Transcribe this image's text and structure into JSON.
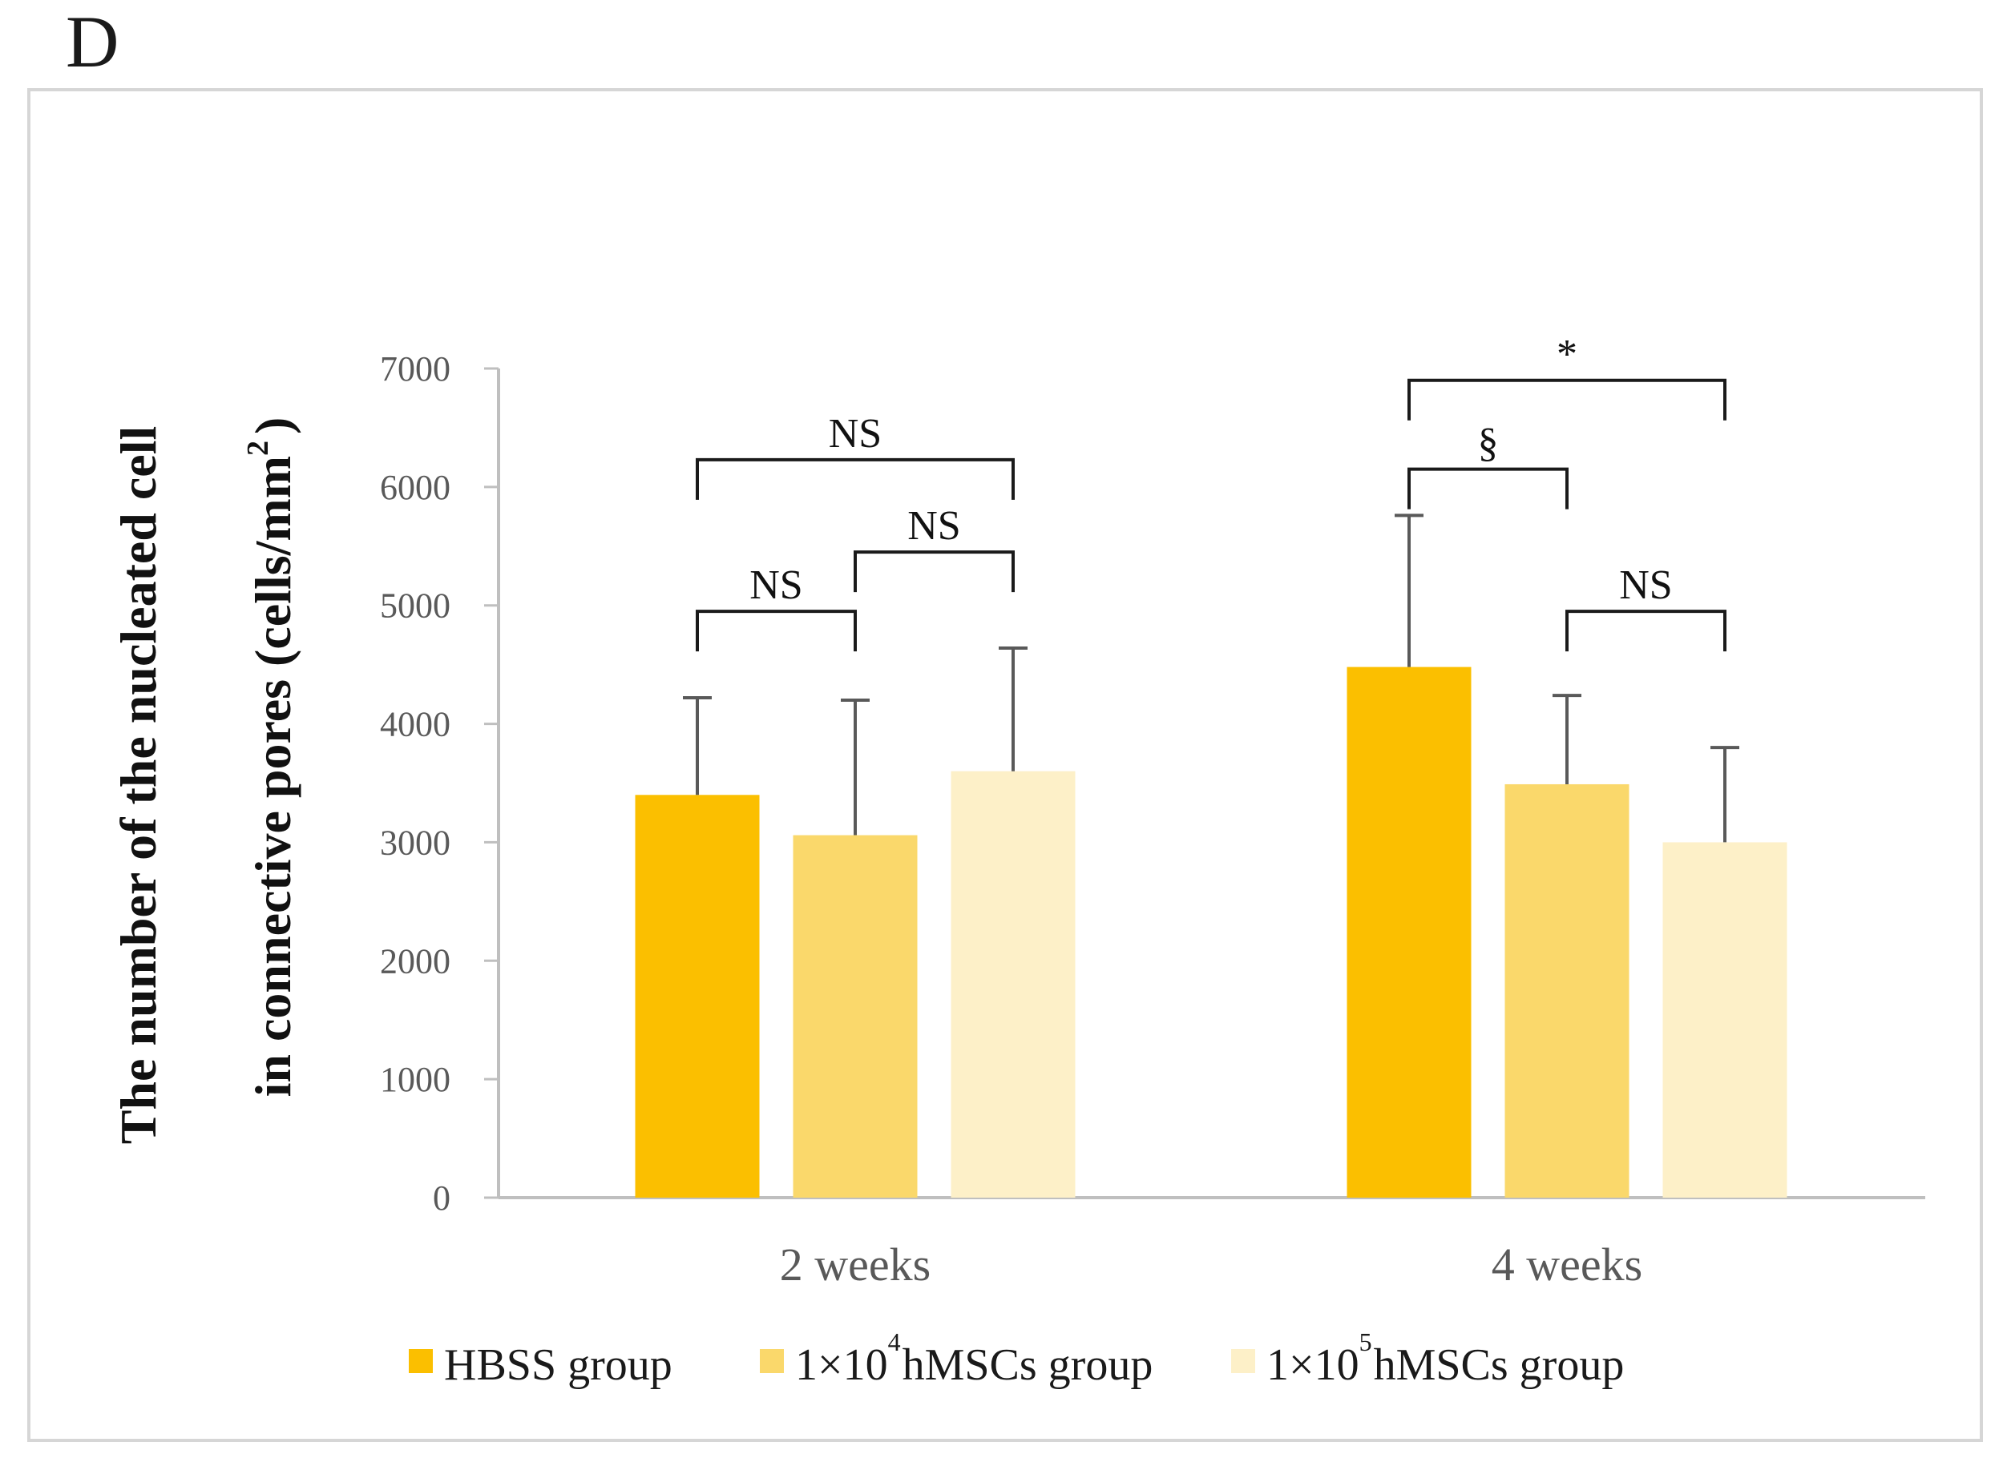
{
  "panel_label": "D",
  "colors": {
    "axis": "#bfbfbf",
    "error_bar": "#595959",
    "bracket": "#1a1a1a"
  },
  "chart_data": {
    "type": "bar",
    "title": "",
    "xlabel": "",
    "ylabel_line1": "The number of the nucleated cell",
    "ylabel_line2_main": "in connective pores (cells/mm",
    "ylabel_line2_sup": "2",
    "ylabel_line2_end": ")",
    "ylim": [
      0,
      7000
    ],
    "yticks": [
      0,
      1000,
      2000,
      3000,
      4000,
      5000,
      6000,
      7000
    ],
    "categories": [
      "2 weeks",
      "4 weeks"
    ],
    "series": [
      {
        "name": "HBSS group",
        "legend_main": "HBSS group",
        "legend_sup": "",
        "legend_rest": "",
        "color": "#fbbf00",
        "values": [
          3400,
          4480
        ],
        "errors": [
          820,
          1280
        ]
      },
      {
        "name": "1×10^4 hMSCs group",
        "legend_main": "1×10",
        "legend_sup": "4",
        "legend_rest": "hMSCs group",
        "color": "#fad86b",
        "values": [
          3060,
          3490
        ],
        "errors": [
          1140,
          750
        ]
      },
      {
        "name": "1×10^5 hMSCs group",
        "legend_main": "1×10",
        "legend_sup": "5",
        "legend_rest": "hMSCs group",
        "color": "#fdf0c8",
        "values": [
          3600,
          3000
        ],
        "errors": [
          1040,
          800
        ]
      }
    ],
    "significance": [
      {
        "category": 0,
        "from": 0,
        "to": 1,
        "label": "NS",
        "level": 4950
      },
      {
        "category": 0,
        "from": 1,
        "to": 2,
        "label": "NS",
        "level": 5450
      },
      {
        "category": 0,
        "from": 0,
        "to": 2,
        "label": "NS",
        "level": 6230
      },
      {
        "category": 1,
        "from": 0,
        "to": 1,
        "label": "§",
        "level": 6150
      },
      {
        "category": 1,
        "from": 0,
        "to": 2,
        "label": "*",
        "level": 6900
      },
      {
        "category": 1,
        "from": 1,
        "to": 2,
        "label": "NS",
        "level": 4950
      }
    ]
  }
}
